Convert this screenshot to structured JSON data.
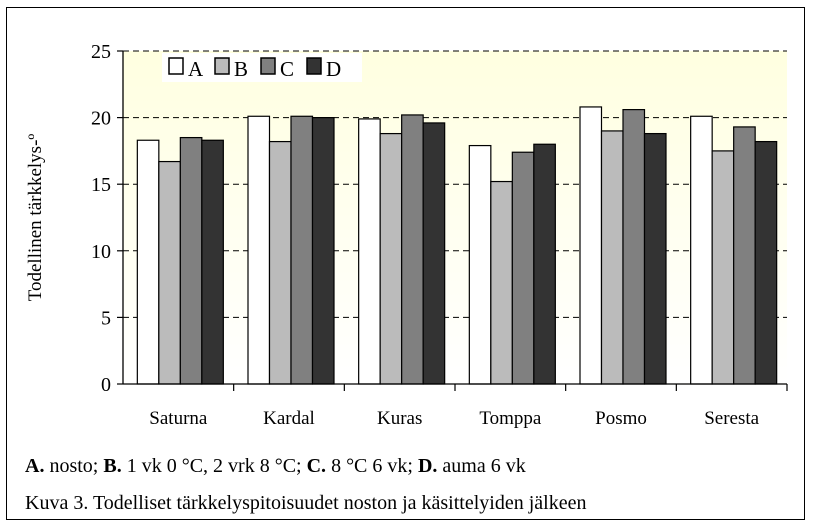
{
  "chart_data": {
    "type": "bar",
    "ylabel": "Todellinen tärkkelys-º",
    "xlabel": "",
    "ylim": [
      0,
      25
    ],
    "yticks": [
      0,
      5,
      10,
      15,
      20,
      25
    ],
    "grid": true,
    "legend_position": "top-left",
    "categories": [
      "Saturna",
      "Kardal",
      "Kuras",
      "Tomppa",
      "Posmo",
      "Seresta"
    ],
    "series": [
      {
        "name": "A",
        "color": "#ffffff",
        "values": [
          18.3,
          20.1,
          19.9,
          17.9,
          20.8,
          20.1
        ]
      },
      {
        "name": "B",
        "color": "#bbbbbb",
        "values": [
          16.7,
          18.2,
          18.8,
          15.2,
          19.0,
          17.5
        ]
      },
      {
        "name": "C",
        "color": "#808080",
        "values": [
          18.5,
          20.1,
          20.2,
          17.4,
          20.6,
          19.3
        ]
      },
      {
        "name": "D",
        "color": "#333333",
        "values": [
          18.3,
          20.0,
          19.6,
          18.0,
          18.8,
          18.2
        ]
      }
    ]
  },
  "caption": {
    "line1": [
      {
        "bold": "A.",
        "text": " nosto; "
      },
      {
        "bold": "B.",
        "text": " 1 vk 0 °C, 2 vrk 8 °C; "
      },
      {
        "bold": "C.",
        "text": " 8 °C 6 vk; "
      },
      {
        "bold": "D.",
        "text": " auma 6 vk"
      }
    ],
    "line2": "Kuva 3. Todelliset tärkkelyspitoisuudet noston ja käsittelyiden jälkeen"
  },
  "colors": {
    "plot_bg_top": "#ffffe0",
    "plot_bg_bottom": "#ffffff",
    "grid": "#000000"
  }
}
